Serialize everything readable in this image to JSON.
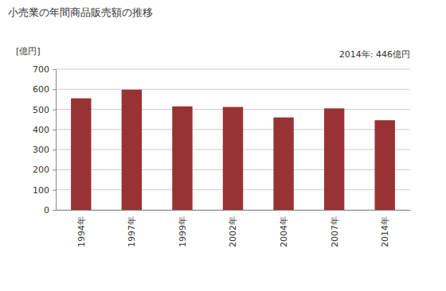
{
  "chart_data": {
    "type": "bar",
    "title": "小売業の年間商品販売額の推移",
    "y_label": "[億円]",
    "annotation": "2014年: 446億円",
    "categories": [
      "1994年",
      "1997年",
      "1999年",
      "2002年",
      "2004年",
      "2007年",
      "2014年"
    ],
    "values": [
      555,
      598,
      515,
      512,
      460,
      505,
      446
    ],
    "color": "#993333",
    "ylim": [
      0,
      700
    ],
    "yticks": [
      0,
      100,
      200,
      300,
      400,
      500,
      600,
      700
    ],
    "grid": true
  }
}
